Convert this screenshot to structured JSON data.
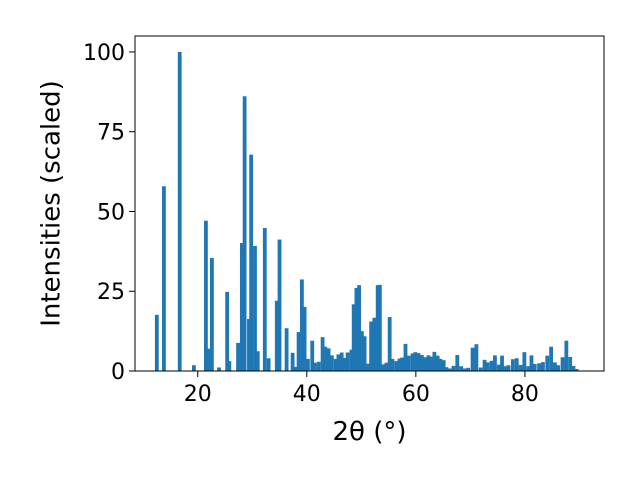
{
  "chart_data": {
    "type": "bar",
    "xlabel": "2θ (°)",
    "ylabel": "Intensities (scaled)",
    "xlim": [
      8.5,
      94.5
    ],
    "ylim": [
      0,
      105
    ],
    "xticks": [
      20,
      40,
      60,
      80
    ],
    "yticks": [
      0,
      25,
      50,
      75,
      100
    ],
    "bar_color": "#1f77b4",
    "bar_width": 0.7,
    "grid": false,
    "x": [
      12.5,
      13.8,
      16.7,
      19.3,
      21.5,
      22.0,
      22.6,
      23.9,
      25.4,
      25.8,
      27.4,
      28.1,
      28.6,
      29.4,
      29.8,
      30.5,
      31.0,
      32.3,
      33.0,
      34.5,
      35.0,
      36.3,
      37.4,
      37.9,
      38.5,
      39.1,
      39.6,
      40.2,
      41.0,
      41.5,
      42.2,
      42.9,
      43.4,
      44.0,
      44.6,
      45.3,
      45.8,
      46.4,
      47.0,
      47.5,
      48.2,
      48.6,
      49.1,
      49.6,
      50.1,
      50.6,
      51.3,
      51.8,
      52.4,
      53.0,
      53.4,
      54.0,
      54.6,
      55.2,
      55.7,
      56.4,
      57.0,
      57.5,
      58.1,
      58.7,
      59.4,
      59.9,
      60.5,
      61.1,
      61.7,
      62.3,
      62.8,
      63.4,
      64.0,
      64.5,
      65.1,
      65.6,
      66.2,
      66.9,
      67.6,
      68.3,
      68.9,
      69.6,
      70.4,
      71.1,
      71.9,
      72.6,
      73.2,
      73.9,
      74.5,
      75.2,
      75.8,
      76.4,
      77.0,
      77.8,
      78.5,
      79.2,
      79.9,
      80.6,
      81.2,
      81.8,
      82.6,
      83.3,
      84.1,
      84.8,
      85.5,
      86.1,
      86.9,
      87.6,
      88.3,
      88.9,
      89.5
    ],
    "values": [
      17.6,
      57.9,
      100,
      1.8,
      47.1,
      7.0,
      35.4,
      1.1,
      24.8,
      3.1,
      8.8,
      40.1,
      86.1,
      16.3,
      67.8,
      39.2,
      6.2,
      44.8,
      4.0,
      22.0,
      41.2,
      13.4,
      5.7,
      1.3,
      12.2,
      28.7,
      20.1,
      3.8,
      9.5,
      2.6,
      2.9,
      10.6,
      7.6,
      7.1,
      4.9,
      3.8,
      5.2,
      5.8,
      4.1,
      5.8,
      6.7,
      20.9,
      26.0,
      26.9,
      12.5,
      10.9,
      2.3,
      15.5,
      16.7,
      26.9,
      27.0,
      2.1,
      2.6,
      16.9,
      3.8,
      3.1,
      3.9,
      4.2,
      8.5,
      4.8,
      5.5,
      5.9,
      5.6,
      5.0,
      4.3,
      4.9,
      4.5,
      6.0,
      4.8,
      3.8,
      3.4,
      1.2,
      0.8,
      1.6,
      5.0,
      1.5,
      0.8,
      1.0,
      7.3,
      8.4,
      1.1,
      3.5,
      2.7,
      3.2,
      4.9,
      2.0,
      4.8,
      1.5,
      1.8,
      3.7,
      4.0,
      1.9,
      5.9,
      1.5,
      4.9,
      2.2,
      2.4,
      2.8,
      4.8,
      7.6,
      2.7,
      1.8,
      4.3,
      9.5,
      4.4,
      1.6,
      0.6
    ]
  }
}
